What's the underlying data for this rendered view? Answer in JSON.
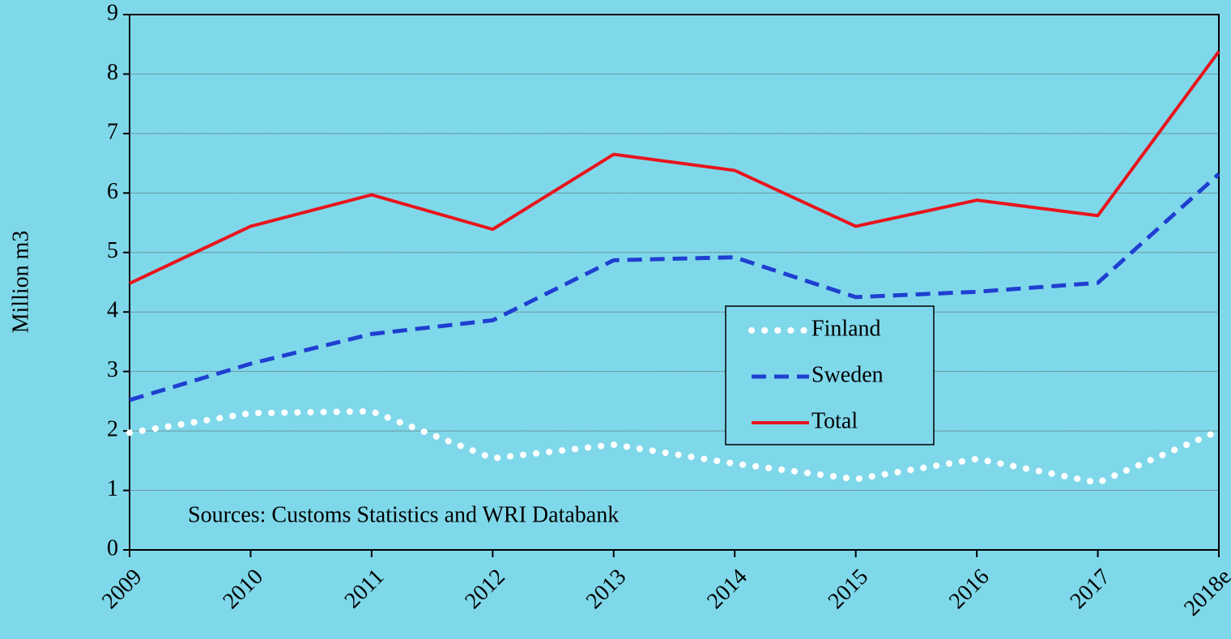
{
  "chart_data": {
    "type": "line",
    "y_label": "Million m3",
    "annotation": "Sources: Customs Statistics and WRI Databank",
    "categories": [
      "2009",
      "2010",
      "2011",
      "2012",
      "2013",
      "2014",
      "2015",
      "2016",
      "2017",
      "2018e"
    ],
    "series": [
      {
        "name": "Finland",
        "color": "#ffffff",
        "dash": "dotted",
        "values": [
          1.97,
          2.3,
          2.33,
          1.54,
          1.77,
          1.45,
          1.19,
          1.53,
          1.13,
          2.0
        ]
      },
      {
        "name": "Sweden",
        "color": "#1f3fd1",
        "dash": "dashed",
        "values": [
          2.52,
          3.13,
          3.63,
          3.86,
          4.87,
          4.92,
          4.25,
          4.34,
          4.49,
          6.32
        ]
      },
      {
        "name": "Total",
        "color": "#e8141c",
        "dash": "solid",
        "values": [
          4.48,
          5.44,
          5.97,
          5.39,
          6.65,
          6.38,
          5.44,
          5.88,
          5.62,
          8.38
        ]
      }
    ],
    "ylim": [
      0,
      9
    ],
    "yticks": [
      0,
      1,
      2,
      3,
      4,
      5,
      6,
      7,
      8,
      9
    ],
    "grid": true,
    "legend": "center-right"
  }
}
